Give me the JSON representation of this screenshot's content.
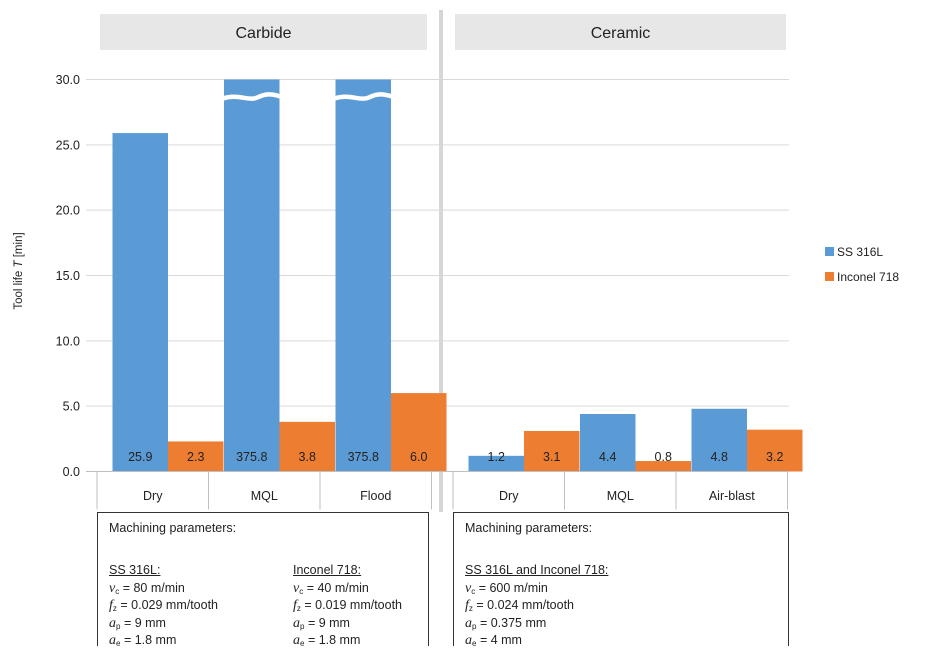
{
  "chart_data": {
    "type": "bar",
    "ylabel": "Tool life",
    "ylabel_symbol": "T",
    "ylabel_unit": "[min]",
    "ylim": [
      0,
      30
    ],
    "yticks": [
      "0.0",
      "5.0",
      "10.0",
      "15.0",
      "20.0",
      "25.0",
      "30.0"
    ],
    "grid": true,
    "legend_position": "right",
    "broken_axis_bars": "bars above 30.0 are drawn with a break and labelled with their true value",
    "series": [
      {
        "name": "SS 316L",
        "color": "#5B9BD5"
      },
      {
        "name": "Inconel 718",
        "color": "#ED7D31"
      }
    ],
    "panels": [
      {
        "title": "Carbide",
        "categories": [
          "Dry",
          "MQL",
          "Flood"
        ],
        "values": {
          "SS 316L": [
            25.9,
            375.8,
            375.8
          ],
          "Inconel 718": [
            2.3,
            3.8,
            6.0
          ]
        },
        "labels": {
          "SS 316L": [
            "25.9",
            "375.8",
            "375.8"
          ],
          "Inconel 718": [
            "2.3",
            "3.8",
            "6.0"
          ]
        }
      },
      {
        "title": "Ceramic",
        "categories": [
          "Dry",
          "MQL",
          "Air-blast"
        ],
        "values": {
          "SS 316L": [
            1.2,
            4.4,
            4.8
          ],
          "Inconel 718": [
            3.1,
            0.8,
            3.2
          ]
        },
        "labels": {
          "SS 316L": [
            "1.2",
            "4.4",
            "4.8"
          ],
          "Inconel 718": [
            "3.1",
            "0.8",
            "3.2"
          ]
        }
      }
    ]
  },
  "params": {
    "carbide": {
      "title": "Machining parameters:",
      "columns": [
        {
          "head": "SS 316L:",
          "vc": "= 80 m/min",
          "fz": "= 0.029 mm/tooth",
          "ap": "= 9 mm",
          "ae": "= 1.8 mm"
        },
        {
          "head": "Inconel 718:",
          "vc": "= 40 m/min",
          "fz": "= 0.019 mm/tooth",
          "ap": "= 9 mm",
          "ae": "= 1.8 mm"
        }
      ]
    },
    "ceramic": {
      "title": "Machining parameters:",
      "columns": [
        {
          "head": "SS 316L and Inconel 718:",
          "vc": "= 600 m/min",
          "fz": "= 0.024 mm/tooth",
          "ap": "= 0.375 mm",
          "ae": "= 4 mm"
        }
      ]
    },
    "symbols": {
      "v": "v",
      "c": "c",
      "f": "f",
      "z": "z",
      "a": "a",
      "p": "p",
      "e": "e"
    }
  }
}
